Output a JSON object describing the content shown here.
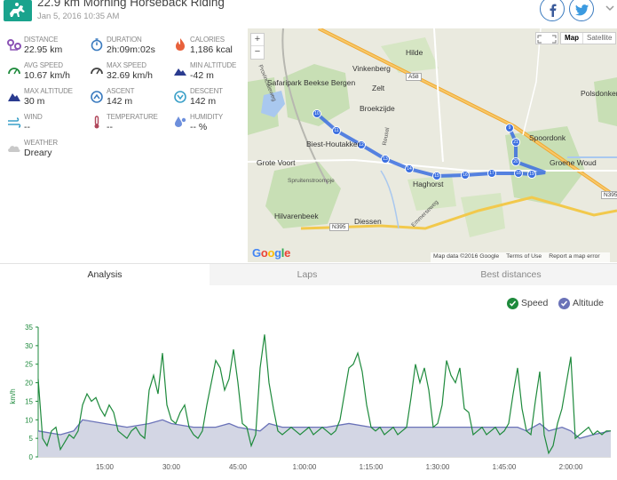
{
  "header": {
    "title": "22.9 km Morning Horseback Riding",
    "date": "Jan 5, 2016 10:35 AM",
    "share_facebook": "f"
  },
  "colors": {
    "accent": "#1aa38d",
    "speed": "#1e8a3c",
    "altitude": "#6a72b8",
    "altitude_fill": "#d3d6e4",
    "route": "#3b6fe0",
    "share": "#3b7bbf"
  },
  "stats": [
    {
      "label": "DISTANCE",
      "value": "22.95 km",
      "icon": "distance-icon",
      "color": "#8b53b5"
    },
    {
      "label": "DURATION",
      "value": "2h:09m:02s",
      "icon": "stopwatch-icon",
      "color": "#3b7bbf"
    },
    {
      "label": "CALORIES",
      "value": "1,186 kcal",
      "icon": "flame-icon",
      "color": "#e8613c"
    },
    {
      "label": "AVG SPEED",
      "value": "10.67 km/h",
      "icon": "speedometer-icon",
      "color": "#1e8a3c"
    },
    {
      "label": "MAX SPEED",
      "value": "32.69 km/h",
      "icon": "speedometer-icon",
      "color": "#444444"
    },
    {
      "label": "MIN ALTITUDE",
      "value": "-42 m",
      "icon": "mountain-down-icon",
      "color": "#2a3b8f"
    },
    {
      "label": "MAX ALTITUDE",
      "value": "30 m",
      "icon": "mountain-up-icon",
      "color": "#2a3b8f"
    },
    {
      "label": "ASCENT",
      "value": "142 m",
      "icon": "ascent-icon",
      "color": "#3b7bbf"
    },
    {
      "label": "DESCENT",
      "value": "142 m",
      "icon": "descent-icon",
      "color": "#3ba0c8"
    },
    {
      "label": "WIND",
      "value": "--",
      "icon": "wind-icon",
      "color": "#3ba0c8"
    },
    {
      "label": "TEMPERATURE",
      "value": "--",
      "icon": "thermometer-icon",
      "color": "#b0465a"
    },
    {
      "label": "HUMIDITY",
      "value": "-- %",
      "icon": "humidity-icon",
      "color": "#6d8fdc"
    },
    {
      "label": "WEATHER",
      "value": "Dreary",
      "icon": "cloud-icon",
      "color": "#c9c9c9"
    }
  ],
  "map": {
    "zoom_in": "+",
    "zoom_out": "−",
    "type_map": "Map",
    "type_satellite": "Satellite",
    "google": "Google",
    "footer_data": "Map data ©2016 Google",
    "footer_terms": "Terms of Use",
    "footer_report": "Report a map error",
    "labels": [
      {
        "text": "Hilde",
        "kind": "town"
      },
      {
        "text": "Vinkenberg",
        "kind": "town"
      },
      {
        "text": "Safaripark Beekse Bergen",
        "kind": "town"
      },
      {
        "text": "Zelt",
        "kind": "town"
      },
      {
        "text": "Broekzijde",
        "kind": "town"
      },
      {
        "text": "Biest-Houtakker",
        "kind": "town"
      },
      {
        "text": "Grote Voort",
        "kind": "town"
      },
      {
        "text": "Haghorst",
        "kind": "town"
      },
      {
        "text": "Spoordonk",
        "kind": "town"
      },
      {
        "text": "Groene Woud",
        "kind": "town"
      },
      {
        "text": "Hilvarenbeek",
        "kind": "town"
      },
      {
        "text": "Diessen",
        "kind": "town"
      },
      {
        "text": "Polsdonken",
        "kind": "town"
      },
      {
        "text": "Spruitenstroompje",
        "kind": "road"
      },
      {
        "text": "A58",
        "kind": "badge"
      },
      {
        "text": "N395",
        "kind": "badge"
      },
      {
        "text": "N395",
        "kind": "badge"
      },
      {
        "text": "Reusel",
        "kind": "road"
      },
      {
        "text": "Provincialeweg",
        "kind": "road"
      },
      {
        "text": "Emmerseweg",
        "kind": "road"
      }
    ],
    "markers": [
      "10",
      "11",
      "12",
      "13",
      "14",
      "15",
      "16",
      "17",
      "18",
      "19",
      "20",
      "21",
      "9"
    ]
  },
  "tabs": [
    {
      "label": "Analysis",
      "active": true
    },
    {
      "label": "Laps",
      "active": false
    },
    {
      "label": "Best distances",
      "active": false
    }
  ],
  "legend": {
    "speed": "Speed",
    "altitude": "Altitude"
  },
  "chart_data": {
    "type": "line",
    "ylabel": "km/h",
    "ylim": [
      0,
      35
    ],
    "yticks": [
      "0",
      "5",
      "10",
      "15",
      "20",
      "25",
      "30",
      "35"
    ],
    "xticks": [
      "15:00",
      "30:00",
      "45:00",
      "1:00:00",
      "1:15:00",
      "1:30:00",
      "1:45:00",
      "2:00:00"
    ],
    "xtick_minutes": [
      15,
      30,
      45,
      60,
      75,
      90,
      105,
      120
    ],
    "xlim_minutes": [
      0,
      129
    ],
    "series": [
      {
        "name": "Speed",
        "x": [
          0,
          1,
          2,
          3,
          4,
          5,
          6,
          7,
          8,
          9,
          10,
          11,
          12,
          13,
          14,
          15,
          16,
          17,
          18,
          19,
          20,
          21,
          22,
          23,
          24,
          25,
          26,
          27,
          28,
          29,
          30,
          31,
          32,
          33,
          34,
          35,
          36,
          37,
          38,
          39,
          40,
          41,
          42,
          43,
          44,
          45,
          46,
          47,
          48,
          49,
          50,
          51,
          52,
          53,
          54,
          55,
          56,
          57,
          58,
          59,
          60,
          61,
          62,
          63,
          64,
          65,
          66,
          67,
          68,
          69,
          70,
          71,
          72,
          73,
          74,
          75,
          76,
          77,
          78,
          79,
          80,
          81,
          82,
          83,
          84,
          85,
          86,
          87,
          88,
          89,
          90,
          91,
          92,
          93,
          94,
          95,
          96,
          97,
          98,
          99,
          100,
          101,
          102,
          103,
          104,
          105,
          106,
          107,
          108,
          109,
          110,
          111,
          112,
          113,
          114,
          115,
          116,
          117,
          118,
          119,
          120,
          121,
          122,
          123,
          124,
          125,
          126,
          127,
          128,
          129
        ],
        "values": [
          21,
          5,
          3,
          7,
          8,
          2,
          4,
          6,
          5,
          7,
          14,
          17,
          15,
          16,
          13,
          11,
          14,
          12,
          7,
          6,
          5,
          7,
          8,
          6,
          5,
          18,
          22,
          17,
          28,
          14,
          10,
          9,
          12,
          14,
          8,
          6,
          5,
          7,
          14,
          20,
          26,
          24,
          18,
          21,
          29,
          20,
          9,
          8,
          3,
          6,
          24,
          33,
          20,
          13,
          7,
          6,
          7,
          8,
          7,
          6,
          7,
          8,
          6,
          7,
          8,
          7,
          6,
          7,
          10,
          17,
          24,
          25,
          28,
          23,
          14,
          8,
          7,
          8,
          6,
          7,
          8,
          6,
          7,
          8,
          16,
          25,
          20,
          24,
          18,
          8,
          9,
          14,
          26,
          22,
          20,
          24,
          13,
          12,
          6,
          7,
          8,
          6,
          7,
          8,
          6,
          7,
          9,
          17,
          24,
          13,
          7,
          6,
          15,
          23,
          6,
          1,
          3,
          9,
          13,
          20,
          27,
          5,
          6,
          7,
          8,
          6,
          7,
          6,
          7,
          7
        ]
      },
      {
        "name": "Altitude",
        "x": [
          0,
          5,
          8,
          10,
          15,
          20,
          25,
          28,
          30,
          35,
          40,
          43,
          45,
          50,
          52,
          55,
          60,
          65,
          70,
          75,
          80,
          85,
          90,
          95,
          100,
          105,
          108,
          110,
          113,
          115,
          118,
          120,
          122,
          125,
          129
        ],
        "values": [
          7,
          6,
          7,
          10,
          9,
          8,
          9,
          10,
          9,
          8,
          8,
          9,
          8,
          7,
          9,
          8,
          8,
          8,
          9,
          8,
          8,
          8,
          8,
          8,
          8,
          8,
          8,
          7,
          9,
          7,
          8,
          7,
          5,
          6,
          7
        ]
      }
    ]
  }
}
